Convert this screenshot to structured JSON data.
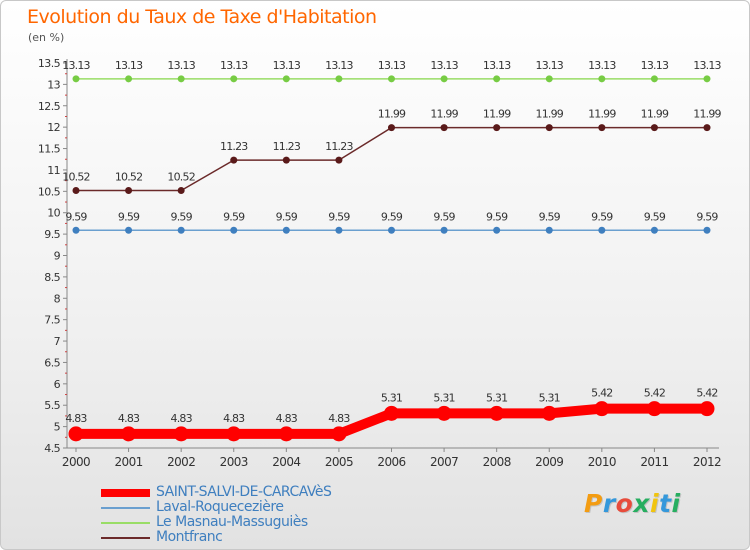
{
  "title": "Evolution du Taux de Taxe d'Habitation",
  "unit": "(en %)",
  "logo": {
    "text": "Proxiti",
    "letter_colors": [
      "#f39c12",
      "#3498db",
      "#e74c3c",
      "#27ae60",
      "#f1c40f",
      "#3498db",
      "#27ae60"
    ]
  },
  "chart_data": {
    "type": "line",
    "title": "Evolution du Taux de Taxe d'Habitation",
    "ylabel": "(en %)",
    "xlabel": "",
    "x": [
      "2000",
      "2001",
      "2002",
      "2003",
      "2004",
      "2005",
      "2006",
      "2007",
      "2008",
      "2009",
      "2010",
      "2011",
      "2012"
    ],
    "ylim": [
      4.5,
      13.5
    ],
    "yticks": [
      "4.5",
      "5",
      "5.5",
      "6",
      "6.5",
      "7",
      "7.5",
      "8",
      "8.5",
      "9",
      "9.5",
      "10",
      "10.5",
      "11",
      "11.5",
      "12",
      "12.5",
      "13",
      "13.5"
    ],
    "grid": false,
    "legend_position": "bottom-left",
    "series": [
      {
        "name": "SAINT-SALVI-DE-CARCAVèS",
        "color": "#ff0000",
        "marker_color": "#ff0000",
        "emphasis": true,
        "values": [
          4.83,
          4.83,
          4.83,
          4.83,
          4.83,
          4.83,
          5.31,
          5.31,
          5.31,
          5.31,
          5.42,
          5.42,
          5.42
        ],
        "labels": [
          "4.83",
          "4.83",
          "4.83",
          "4.83",
          "4.83",
          "4.83",
          "5.31",
          "5.31",
          "5.31",
          "5.31",
          "5.42",
          "5.42",
          "5.42"
        ]
      },
      {
        "name": "Laval-Roquecezière",
        "color": "#6a9fcf",
        "marker_color": "#3f7fbf",
        "emphasis": false,
        "values": [
          9.59,
          9.59,
          9.59,
          9.59,
          9.59,
          9.59,
          9.59,
          9.59,
          9.59,
          9.59,
          9.59,
          9.59,
          9.59
        ],
        "labels": [
          "9.59",
          "9.59",
          "9.59",
          "9.59",
          "9.59",
          "9.59",
          "9.59",
          "9.59",
          "9.59",
          "9.59",
          "9.59",
          "9.59",
          "9.59"
        ]
      },
      {
        "name": "Le Masnau-Massuguiès",
        "color": "#99dd66",
        "marker_color": "#77cc44",
        "emphasis": false,
        "values": [
          13.13,
          13.13,
          13.13,
          13.13,
          13.13,
          13.13,
          13.13,
          13.13,
          13.13,
          13.13,
          13.13,
          13.13,
          13.13
        ],
        "labels": [
          "13.13",
          "13.13",
          "13.13",
          "13.13",
          "13.13",
          "13.13",
          "13.13",
          "13.13",
          "13.13",
          "13.13",
          "13.13",
          "13.13",
          "13.13"
        ]
      },
      {
        "name": "Montfranc",
        "color": "#6b2a2a",
        "marker_color": "#5a1a1a",
        "emphasis": false,
        "values": [
          10.52,
          10.52,
          10.52,
          11.23,
          11.23,
          11.23,
          11.99,
          11.99,
          11.99,
          11.99,
          11.99,
          11.99,
          11.99
        ],
        "labels": [
          "10.52",
          "10.52",
          "10.52",
          "11.23",
          "11.23",
          "11.23",
          "11.99",
          "11.99",
          "11.99",
          "11.99",
          "11.99",
          "11.99",
          "11.99"
        ]
      }
    ]
  }
}
